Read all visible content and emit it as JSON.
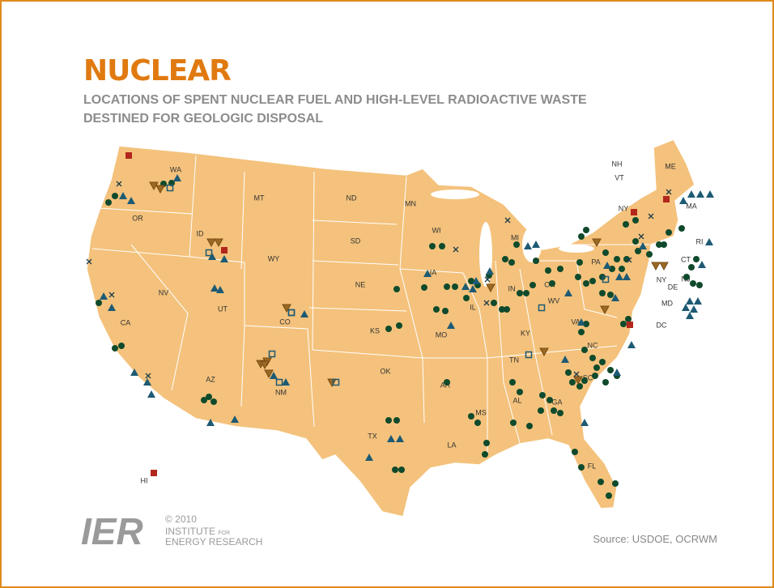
{
  "header": {
    "title": "NUCLEAR",
    "subtitle_lines": [
      "LOCATIONS OF SPENT NUCLEAR FUEL AND HIGH-LEVEL RADIOACTIVE WASTE",
      "DESTINED FOR GEOLOGIC DISPOSAL"
    ]
  },
  "map": {
    "state_labels": [
      "WA",
      "OR",
      "CA",
      "NV",
      "ID",
      "MT",
      "WY",
      "UT",
      "AZ",
      "CO",
      "NM",
      "ND",
      "SD",
      "NE",
      "KS",
      "OK",
      "TX",
      "MN",
      "IA",
      "MO",
      "AR",
      "LA",
      "WI",
      "IL",
      "MI",
      "IN",
      "OH",
      "KY",
      "TN",
      "MS",
      "AL",
      "GA",
      "FL",
      "SC",
      "NC",
      "VA",
      "WV",
      "PA",
      "NY",
      "ME",
      "NH",
      "VT",
      "MA",
      "RI",
      "CT",
      "NY",
      "NJ",
      "DE",
      "MD",
      "DC",
      "HI"
    ]
  },
  "logo": {
    "mark": "IER",
    "copyright": "© 2010",
    "line1": "INSTITUTE",
    "line1_small": "FOR",
    "line2": "ENERGY RESEARCH"
  },
  "source": "Source: USDOE, OCRWM"
}
